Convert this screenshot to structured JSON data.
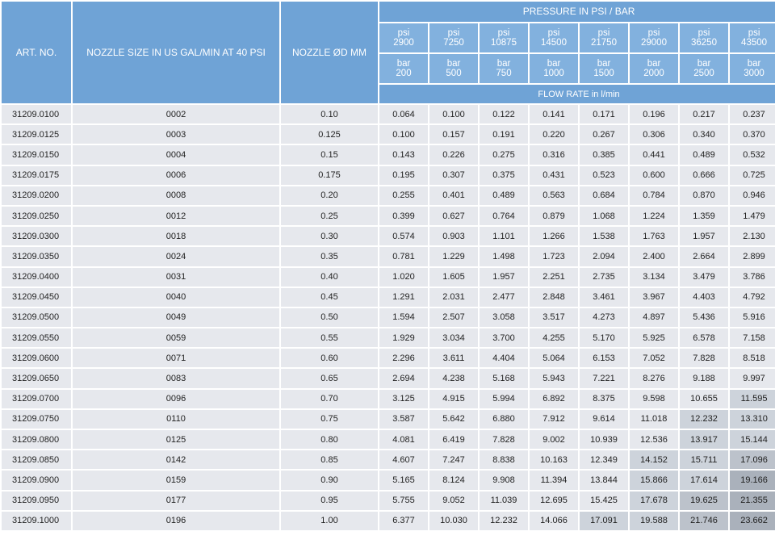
{
  "header": {
    "art_no": "ART. NO.",
    "nozzle_size": "NOZZLE SIZE IN US GAL/MIN AT 40 PSI",
    "nozzle_od": "NOZZLE ØD MM",
    "pressure_group": "PRESSURE IN PSI / BAR",
    "flow_rate": "FLOW RATE in l/min"
  },
  "pressures": [
    {
      "psi_label": "psi",
      "psi": "2900",
      "bar_label": "bar",
      "bar": "200"
    },
    {
      "psi_label": "psi",
      "psi": "7250",
      "bar_label": "bar",
      "bar": "500"
    },
    {
      "psi_label": "psi",
      "psi": "10875",
      "bar_label": "bar",
      "bar": "750"
    },
    {
      "psi_label": "psi",
      "psi": "14500",
      "bar_label": "bar",
      "bar": "1000"
    },
    {
      "psi_label": "psi",
      "psi": "21750",
      "bar_label": "bar",
      "bar": "1500"
    },
    {
      "psi_label": "psi",
      "psi": "29000",
      "bar_label": "bar",
      "bar": "2000"
    },
    {
      "psi_label": "psi",
      "psi": "36250",
      "bar_label": "bar",
      "bar": "2500"
    },
    {
      "psi_label": "psi",
      "psi": "43500",
      "bar_label": "bar",
      "bar": "3000"
    }
  ],
  "shade_colors": {
    "normal": "#e6e8ed",
    "level1": "#cdd3db",
    "level2": "#bcc2cb",
    "level3": "#aab1bb"
  },
  "rows": [
    {
      "art": "31209.0100",
      "size": "0002",
      "od": "0.10",
      "flows": [
        "0.064",
        "0.100",
        "0.122",
        "0.141",
        "0.171",
        "0.196",
        "0.217",
        "0.237"
      ],
      "shade": [
        0,
        0,
        0,
        0,
        0,
        0,
        0,
        0
      ]
    },
    {
      "art": "31209.0125",
      "size": "0003",
      "od": "0.125",
      "flows": [
        "0.100",
        "0.157",
        "0.191",
        "0.220",
        "0.267",
        "0.306",
        "0.340",
        "0.370"
      ],
      "shade": [
        0,
        0,
        0,
        0,
        0,
        0,
        0,
        0
      ]
    },
    {
      "art": "31209.0150",
      "size": "0004",
      "od": "0.15",
      "flows": [
        "0.143",
        "0.226",
        "0.275",
        "0.316",
        "0.385",
        "0.441",
        "0.489",
        "0.532"
      ],
      "shade": [
        0,
        0,
        0,
        0,
        0,
        0,
        0,
        0
      ]
    },
    {
      "art": "31209.0175",
      "size": "0006",
      "od": "0.175",
      "flows": [
        "0.195",
        "0.307",
        "0.375",
        "0.431",
        "0.523",
        "0.600",
        "0.666",
        "0.725"
      ],
      "shade": [
        0,
        0,
        0,
        0,
        0,
        0,
        0,
        0
      ]
    },
    {
      "art": "31209.0200",
      "size": "0008",
      "od": "0.20",
      "flows": [
        "0.255",
        "0.401",
        "0.489",
        "0.563",
        "0.684",
        "0.784",
        "0.870",
        "0.946"
      ],
      "shade": [
        0,
        0,
        0,
        0,
        0,
        0,
        0,
        0
      ]
    },
    {
      "art": "31209.0250",
      "size": "0012",
      "od": "0.25",
      "flows": [
        "0.399",
        "0.627",
        "0.764",
        "0.879",
        "1.068",
        "1.224",
        "1.359",
        "1.479"
      ],
      "shade": [
        0,
        0,
        0,
        0,
        0,
        0,
        0,
        0
      ]
    },
    {
      "art": "31209.0300",
      "size": "0018",
      "od": "0.30",
      "flows": [
        "0.574",
        "0.903",
        "1.101",
        "1.266",
        "1.538",
        "1.763",
        "1.957",
        "2.130"
      ],
      "shade": [
        0,
        0,
        0,
        0,
        0,
        0,
        0,
        0
      ]
    },
    {
      "art": "31209.0350",
      "size": "0024",
      "od": "0.35",
      "flows": [
        "0.781",
        "1.229",
        "1.498",
        "1.723",
        "2.094",
        "2.400",
        "2.664",
        "2.899"
      ],
      "shade": [
        0,
        0,
        0,
        0,
        0,
        0,
        0,
        0
      ]
    },
    {
      "art": "31209.0400",
      "size": "0031",
      "od": "0.40",
      "flows": [
        "1.020",
        "1.605",
        "1.957",
        "2.251",
        "2.735",
        "3.134",
        "3.479",
        "3.786"
      ],
      "shade": [
        0,
        0,
        0,
        0,
        0,
        0,
        0,
        0
      ]
    },
    {
      "art": "31209.0450",
      "size": "0040",
      "od": "0.45",
      "flows": [
        "1.291",
        "2.031",
        "2.477",
        "2.848",
        "3.461",
        "3.967",
        "4.403",
        "4.792"
      ],
      "shade": [
        0,
        0,
        0,
        0,
        0,
        0,
        0,
        0
      ]
    },
    {
      "art": "31209.0500",
      "size": "0049",
      "od": "0.50",
      "flows": [
        "1.594",
        "2.507",
        "3.058",
        "3.517",
        "4.273",
        "4.897",
        "5.436",
        "5.916"
      ],
      "shade": [
        0,
        0,
        0,
        0,
        0,
        0,
        0,
        0
      ]
    },
    {
      "art": "31209.0550",
      "size": "0059",
      "od": "0.55",
      "flows": [
        "1.929",
        "3.034",
        "3.700",
        "4.255",
        "5.170",
        "5.925",
        "6.578",
        "7.158"
      ],
      "shade": [
        0,
        0,
        0,
        0,
        0,
        0,
        0,
        0
      ]
    },
    {
      "art": "31209.0600",
      "size": "0071",
      "od": "0.60",
      "flows": [
        "2.296",
        "3.611",
        "4.404",
        "5.064",
        "6.153",
        "7.052",
        "7.828",
        "8.518"
      ],
      "shade": [
        0,
        0,
        0,
        0,
        0,
        0,
        0,
        0
      ]
    },
    {
      "art": "31209.0650",
      "size": "0083",
      "od": "0.65",
      "flows": [
        "2.694",
        "4.238",
        "5.168",
        "5.943",
        "7.221",
        "8.276",
        "9.188",
        "9.997"
      ],
      "shade": [
        0,
        0,
        0,
        0,
        0,
        0,
        0,
        0
      ]
    },
    {
      "art": "31209.0700",
      "size": "0096",
      "od": "0.70",
      "flows": [
        "3.125",
        "4.915",
        "5.994",
        "6.892",
        "8.375",
        "9.598",
        "10.655",
        "11.595"
      ],
      "shade": [
        0,
        0,
        0,
        0,
        0,
        0,
        0,
        1
      ]
    },
    {
      "art": "31209.0750",
      "size": "0110",
      "od": "0.75",
      "flows": [
        "3.587",
        "5.642",
        "6.880",
        "7.912",
        "9.614",
        "11.018",
        "12.232",
        "13.310"
      ],
      "shade": [
        0,
        0,
        0,
        0,
        0,
        0,
        1,
        1
      ]
    },
    {
      "art": "31209.0800",
      "size": "0125",
      "od": "0.80",
      "flows": [
        "4.081",
        "6.419",
        "7.828",
        "9.002",
        "10.939",
        "12.536",
        "13.917",
        "15.144"
      ],
      "shade": [
        0,
        0,
        0,
        0,
        0,
        0,
        1,
        1
      ]
    },
    {
      "art": "31209.0850",
      "size": "0142",
      "od": "0.85",
      "flows": [
        "4.607",
        "7.247",
        "8.838",
        "10.163",
        "12.349",
        "14.152",
        "15.711",
        "17.096"
      ],
      "shade": [
        0,
        0,
        0,
        0,
        0,
        1,
        1,
        2
      ]
    },
    {
      "art": "31209.0900",
      "size": "0159",
      "od": "0.90",
      "flows": [
        "5.165",
        "8.124",
        "9.908",
        "11.394",
        "13.844",
        "15.866",
        "17.614",
        "19.166"
      ],
      "shade": [
        0,
        0,
        0,
        0,
        0,
        1,
        1,
        3
      ]
    },
    {
      "art": "31209.0950",
      "size": "0177",
      "od": "0.95",
      "flows": [
        "5.755",
        "9.052",
        "11.039",
        "12.695",
        "15.425",
        "17.678",
        "19.625",
        "21.355"
      ],
      "shade": [
        0,
        0,
        0,
        0,
        0,
        1,
        2,
        3
      ]
    },
    {
      "art": "31209.1000",
      "size": "0196",
      "od": "1.00",
      "flows": [
        "6.377",
        "10.030",
        "12.232",
        "14.066",
        "17.091",
        "19.588",
        "21.746",
        "23.662"
      ],
      "shade": [
        0,
        0,
        0,
        0,
        1,
        1,
        2,
        3
      ]
    }
  ]
}
